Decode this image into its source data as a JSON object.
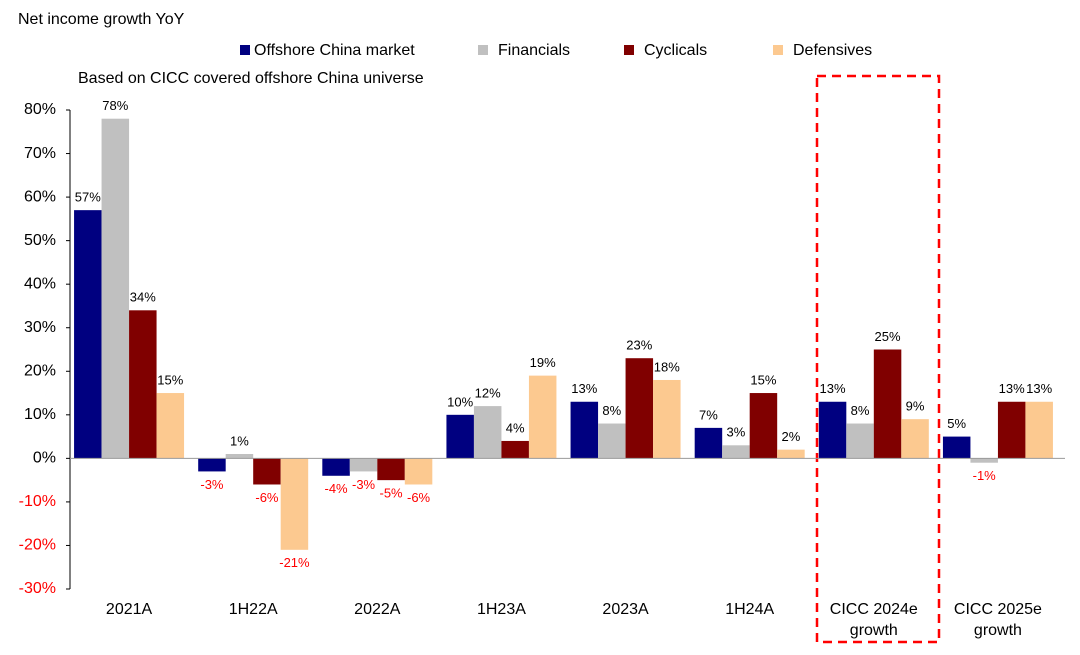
{
  "chart_data": {
    "type": "bar",
    "title": "Net income growth YoY",
    "subtitle": "Based on CICC covered offshore China universe",
    "categories": [
      "2021A",
      "1H22A",
      "2022A",
      "1H23A",
      "2023A",
      "1H24A",
      "CICC 2024e growth",
      "CICC 2025e growth"
    ],
    "series": [
      {
        "name": "Offshore China market",
        "color": "#000080",
        "values": [
          57,
          -3,
          -4,
          10,
          13,
          7,
          13,
          5
        ],
        "value_labels": [
          "57%",
          "-3%",
          "-4%",
          "10%",
          "13%",
          "7%",
          "13%",
          "5%"
        ]
      },
      {
        "name": "Financials",
        "color": "#c0c0c0",
        "values": [
          78,
          1,
          -3,
          12,
          8,
          3,
          8,
          -1
        ],
        "value_labels": [
          "78%",
          "1%",
          "-3%",
          "12%",
          "8%",
          "3%",
          "8%",
          "-1%"
        ]
      },
      {
        "name": "Cyclicals",
        "color": "#800000",
        "values": [
          34,
          -6,
          -5,
          4,
          23,
          15,
          25,
          13
        ],
        "value_labels": [
          "34%",
          "-6%",
          "-5%",
          "4%",
          "23%",
          "15%",
          "25%",
          "13%"
        ]
      },
      {
        "name": "Defensives",
        "color": "#fcc990",
        "values": [
          15,
          -21,
          -6,
          19,
          18,
          2,
          9,
          13
        ],
        "value_labels": [
          "15%",
          "-21%",
          "-6%",
          "19%",
          "18%",
          "2%",
          "9%",
          "13%"
        ]
      }
    ],
    "ylim": [
      -30,
      80
    ],
    "yticks": [
      {
        "value": -30,
        "label": "-30%"
      },
      {
        "value": -20,
        "label": "-20%"
      },
      {
        "value": -10,
        "label": "-10%"
      },
      {
        "value": 0,
        "label": "0%"
      },
      {
        "value": 10,
        "label": "10%"
      },
      {
        "value": 20,
        "label": "20%"
      },
      {
        "value": 30,
        "label": "30%"
      },
      {
        "value": 40,
        "label": "40%"
      },
      {
        "value": 50,
        "label": "50%"
      },
      {
        "value": 60,
        "label": "60%"
      },
      {
        "value": 70,
        "label": "70%"
      },
      {
        "value": 80,
        "label": "80%"
      }
    ],
    "grid": false
  }
}
